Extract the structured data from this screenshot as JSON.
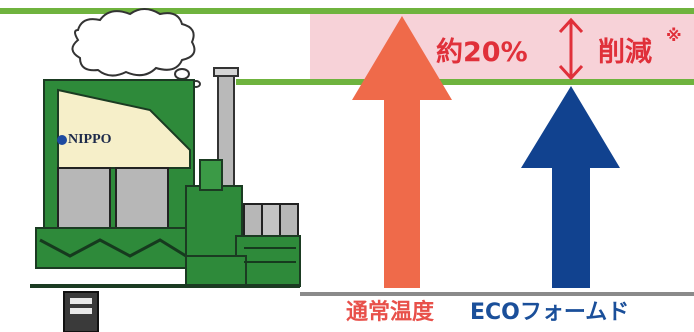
{
  "reduction": {
    "text": "約20%",
    "suffix": "削減",
    "mark": "※"
  },
  "labels": {
    "normal": "通常温度",
    "eco": "ECOフォームド"
  },
  "factory": {
    "brand": "NIPPO"
  },
  "colors": {
    "line_green": "#6fb33e",
    "band_pink": "#f5c8cf",
    "arrow_normal": "#ef6a4a",
    "arrow_eco": "#11428f",
    "text_red": "#e0303a",
    "factory_green": "#2e8a3a"
  }
}
